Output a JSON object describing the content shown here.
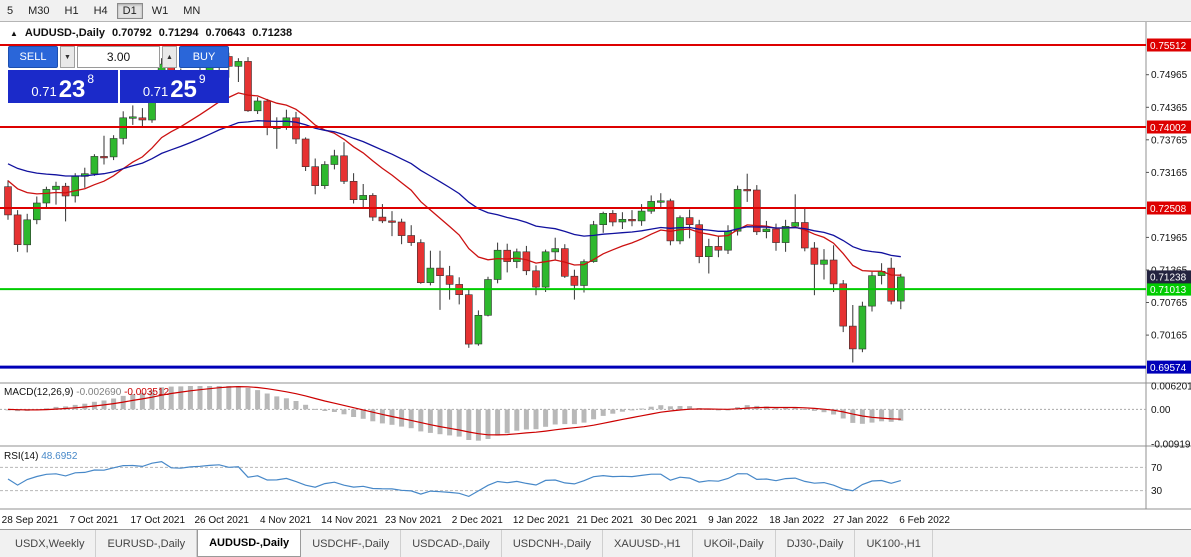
{
  "toolbar": {
    "timeframes": [
      {
        "label": "5",
        "active": false
      },
      {
        "label": "M30",
        "active": false
      },
      {
        "label": "H1",
        "active": false
      },
      {
        "label": "H4",
        "active": false
      },
      {
        "label": "D1",
        "active": true
      },
      {
        "label": "W1",
        "active": false
      },
      {
        "label": "MN",
        "active": false
      }
    ]
  },
  "chart_header": {
    "symbol": "AUDUSD-,Daily",
    "open": "0.70792",
    "high": "0.71294",
    "low": "0.70643",
    "close": "0.71238"
  },
  "trade_panel": {
    "sell_label": "SELL",
    "buy_label": "BUY",
    "volume": "3.00",
    "sell_price": {
      "main": "0.71",
      "big": "23",
      "sup": "8"
    },
    "buy_price": {
      "main": "0.71",
      "big": "25",
      "sup": "9"
    }
  },
  "price_axis": {
    "ticks": [
      "0.74965",
      "0.74365",
      "0.73765",
      "0.73165",
      "0.71965",
      "0.71365",
      "0.70765",
      "0.70165"
    ],
    "lines": [
      {
        "label": "0.75512",
        "value": 0.75512,
        "color": "#dd0000",
        "width": 2
      },
      {
        "label": "0.74002",
        "value": 0.74002,
        "color": "#dd0000",
        "width": 2
      },
      {
        "label": "0.72508",
        "value": 0.72508,
        "color": "#dd0000",
        "width": 2
      },
      {
        "label": "0.71013",
        "value": 0.71013,
        "color": "#00cc00",
        "width": 2
      },
      {
        "label": "0.69574",
        "value": 0.69574,
        "color": "#0000b8",
        "width": 3
      }
    ],
    "current_price": {
      "label": "0.71238",
      "value": 0.71238,
      "bg": "#23233f"
    }
  },
  "tabs": {
    "items": [
      "USDX,Weekly",
      "EURUSD-,Daily",
      "AUDUSD-,Daily",
      "USDCHF-,Daily",
      "USDCAD-,Daily",
      "USDCNH-,Daily",
      "XAUUSD-,H1",
      "UKOil-,Daily",
      "DJ30-,Daily",
      "UK100-,H1"
    ],
    "active_index": 2
  },
  "chart_data": {
    "type": "candlestick",
    "title": "AUDUSD-,Daily",
    "price_min": 0.693,
    "price_max": 0.759,
    "x_labels": [
      "28 Sep 2021",
      "7 Oct 2021",
      "17 Oct 2021",
      "26 Oct 2021",
      "4 Nov 2021",
      "14 Nov 2021",
      "23 Nov 2021",
      "2 Dec 2021",
      "12 Dec 2021",
      "21 Dec 2021",
      "30 Dec 2021",
      "9 Jan 2022",
      "18 Jan 2022",
      "27 Jan 2022",
      "6 Feb 2022"
    ],
    "colors": {
      "up": "#2eb82e",
      "down": "#e63232",
      "wick": "#333333",
      "ma_fast": "#cc1111",
      "ma_slow": "#11119e",
      "macd_hist": "#b8b8b8",
      "macd_signal": "#cc0000",
      "rsi_line": "#4788c8"
    },
    "overlays": [
      {
        "name": "ma-fast",
        "color": "#cc1111",
        "alpha": 0.125,
        "seed": 0.731
      },
      {
        "name": "ma-slow",
        "color": "#11119e",
        "alpha": 0.057,
        "seed": 0.7338
      }
    ],
    "candles": [
      [
        0.729,
        0.7302,
        0.7229,
        0.7238
      ],
      [
        0.7238,
        0.7247,
        0.717,
        0.7183
      ],
      [
        0.7183,
        0.724,
        0.7169,
        0.7229
      ],
      [
        0.7229,
        0.7272,
        0.7221,
        0.726
      ],
      [
        0.726,
        0.729,
        0.725,
        0.7285
      ],
      [
        0.7285,
        0.7299,
        0.7257,
        0.7291
      ],
      [
        0.7291,
        0.7297,
        0.7226,
        0.7273
      ],
      [
        0.7273,
        0.7315,
        0.7261,
        0.7309
      ],
      [
        0.7309,
        0.7325,
        0.7288,
        0.7314
      ],
      [
        0.7314,
        0.735,
        0.731,
        0.7346
      ],
      [
        0.7346,
        0.7384,
        0.7331,
        0.7345
      ],
      [
        0.7345,
        0.7385,
        0.7339,
        0.7379
      ],
      [
        0.7379,
        0.7429,
        0.7368,
        0.7417
      ],
      [
        0.7417,
        0.744,
        0.7404,
        0.7419
      ],
      [
        0.7417,
        0.7435,
        0.7402,
        0.7413
      ],
      [
        0.7413,
        0.7477,
        0.7408,
        0.7474
      ],
      [
        0.7474,
        0.7527,
        0.7458,
        0.7516
      ],
      [
        0.7516,
        0.7521,
        0.745,
        0.7468
      ],
      [
        0.7468,
        0.7508,
        0.7459,
        0.7465
      ],
      [
        0.7465,
        0.7499,
        0.7461,
        0.7489
      ],
      [
        0.7489,
        0.7536,
        0.748,
        0.75
      ],
      [
        0.75,
        0.75513,
        0.7492,
        0.7518
      ],
      [
        0.7518,
        0.7536,
        0.7491,
        0.753
      ],
      [
        0.753,
        0.7537,
        0.7491,
        0.7512
      ],
      [
        0.7512,
        0.7527,
        0.7483,
        0.7521
      ],
      [
        0.7521,
        0.7529,
        0.7428,
        0.743
      ],
      [
        0.743,
        0.7455,
        0.7424,
        0.7448
      ],
      [
        0.7448,
        0.7452,
        0.7385,
        0.7399
      ],
      [
        0.7399,
        0.7418,
        0.736,
        0.74
      ],
      [
        0.74,
        0.7432,
        0.7395,
        0.7417
      ],
      [
        0.7417,
        0.7428,
        0.7369,
        0.7378
      ],
      [
        0.7378,
        0.7381,
        0.7319,
        0.7327
      ],
      [
        0.7327,
        0.7342,
        0.7276,
        0.7292
      ],
      [
        0.7292,
        0.7337,
        0.7286,
        0.7331
      ],
      [
        0.7331,
        0.7358,
        0.7322,
        0.7347
      ],
      [
        0.7347,
        0.7372,
        0.7295,
        0.73
      ],
      [
        0.73,
        0.7315,
        0.7259,
        0.7266
      ],
      [
        0.7266,
        0.7295,
        0.7249,
        0.7274
      ],
      [
        0.7274,
        0.7278,
        0.7227,
        0.7234
      ],
      [
        0.7234,
        0.7258,
        0.7223,
        0.7227
      ],
      [
        0.7227,
        0.7245,
        0.7199,
        0.7225
      ],
      [
        0.7225,
        0.7231,
        0.7184,
        0.72
      ],
      [
        0.72,
        0.7219,
        0.7181,
        0.7187
      ],
      [
        0.7187,
        0.7193,
        0.7111,
        0.7113
      ],
      [
        0.7113,
        0.7172,
        0.7108,
        0.714
      ],
      [
        0.714,
        0.7172,
        0.7063,
        0.7126
      ],
      [
        0.7126,
        0.7144,
        0.7082,
        0.711
      ],
      [
        0.711,
        0.7123,
        0.7073,
        0.7091
      ],
      [
        0.7091,
        0.7101,
        0.6993,
        0.7
      ],
      [
        0.7,
        0.7062,
        0.6997,
        0.7053
      ],
      [
        0.7053,
        0.7124,
        0.7051,
        0.7119
      ],
      [
        0.7119,
        0.7187,
        0.7112,
        0.7173
      ],
      [
        0.7173,
        0.7185,
        0.7132,
        0.7152
      ],
      [
        0.7152,
        0.7176,
        0.714,
        0.717
      ],
      [
        0.717,
        0.7181,
        0.7127,
        0.7135
      ],
      [
        0.7135,
        0.7145,
        0.709,
        0.7105
      ],
      [
        0.7105,
        0.7174,
        0.7096,
        0.717
      ],
      [
        0.717,
        0.7196,
        0.7154,
        0.7176
      ],
      [
        0.7176,
        0.7184,
        0.7122,
        0.7125
      ],
      [
        0.7125,
        0.7137,
        0.7082,
        0.7108
      ],
      [
        0.7108,
        0.7156,
        0.7095,
        0.7152
      ],
      [
        0.7152,
        0.7227,
        0.715,
        0.722
      ],
      [
        0.722,
        0.7244,
        0.7205,
        0.7241
      ],
      [
        0.7241,
        0.7247,
        0.7217,
        0.7225
      ],
      [
        0.7225,
        0.7243,
        0.7212,
        0.723
      ],
      [
        0.723,
        0.7247,
        0.7217,
        0.7227
      ],
      [
        0.7227,
        0.7258,
        0.7218,
        0.7245
      ],
      [
        0.7245,
        0.7274,
        0.724,
        0.7263
      ],
      [
        0.7263,
        0.7278,
        0.7251,
        0.7264
      ],
      [
        0.7264,
        0.7268,
        0.7182,
        0.719
      ],
      [
        0.719,
        0.7237,
        0.7184,
        0.7233
      ],
      [
        0.7233,
        0.7248,
        0.7195,
        0.722
      ],
      [
        0.722,
        0.7229,
        0.7149,
        0.7161
      ],
      [
        0.7161,
        0.7194,
        0.713,
        0.718
      ],
      [
        0.718,
        0.7199,
        0.716,
        0.7173
      ],
      [
        0.7173,
        0.7219,
        0.7166,
        0.7208
      ],
      [
        0.7208,
        0.7292,
        0.72,
        0.7285
      ],
      [
        0.7285,
        0.7314,
        0.7262,
        0.7284
      ],
      [
        0.7284,
        0.7293,
        0.7201,
        0.7207
      ],
      [
        0.7207,
        0.7227,
        0.7195,
        0.7212
      ],
      [
        0.7212,
        0.7222,
        0.7172,
        0.7187
      ],
      [
        0.7187,
        0.7229,
        0.717,
        0.7217
      ],
      [
        0.7217,
        0.7276,
        0.7214,
        0.7224
      ],
      [
        0.7224,
        0.7249,
        0.7171,
        0.7177
      ],
      [
        0.7177,
        0.7188,
        0.709,
        0.7147
      ],
      [
        0.7147,
        0.7175,
        0.7119,
        0.7155
      ],
      [
        0.7155,
        0.7182,
        0.7096,
        0.7111
      ],
      [
        0.7111,
        0.7118,
        0.7022,
        0.7033
      ],
      [
        0.7033,
        0.7072,
        0.6966,
        0.6991
      ],
      [
        0.6991,
        0.7078,
        0.6985,
        0.707
      ],
      [
        0.707,
        0.7133,
        0.706,
        0.7126
      ],
      [
        0.7126,
        0.7149,
        0.711,
        0.7134
      ],
      [
        0.714,
        0.7159,
        0.7073,
        0.7079
      ],
      [
        0.70792,
        0.71294,
        0.70643,
        0.71238
      ]
    ],
    "indicators": {
      "macd": {
        "label": "MACD(12,26,9)",
        "main_value": "-0.002690",
        "signal_value": "-0.003512",
        "axis": [
          "0.006201",
          "0.00",
          "-0.009193"
        ],
        "fast": 12,
        "slow": 26,
        "signal": 9
      },
      "rsi": {
        "label": "RSI(14)",
        "value": "48.6952",
        "levels": [
          70,
          30
        ],
        "axis": [
          "70",
          "30"
        ]
      }
    }
  }
}
